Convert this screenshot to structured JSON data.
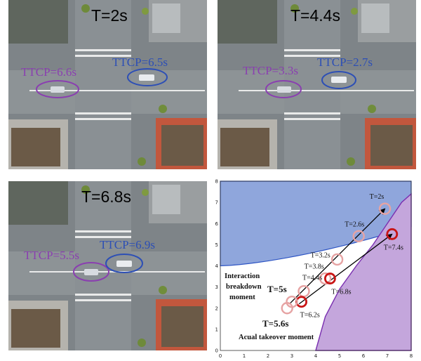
{
  "panels": [
    {
      "time": "T=2s",
      "ttcp_purple": "TTCP=6.6s",
      "ttcp_blue": "TTCP=6.5s"
    },
    {
      "time": "T=4.4s",
      "ttcp_purple": "TTCP=3.3s",
      "ttcp_blue": "TTCP=2.7s"
    },
    {
      "time": "T=6.8s",
      "ttcp_purple": "TTCP=5.5s",
      "ttcp_blue": "TTCP=6.9s"
    }
  ],
  "colors": {
    "purple": "#8a3fb0",
    "blue": "#2d4fb5",
    "region_blue": "#8fa6dc",
    "region_purple": "#c4a6dc",
    "marker_light": "#e6a3a3",
    "marker_dark": "#c81414"
  },
  "chart_data": {
    "type": "scatter",
    "xlim": [
      0,
      8
    ],
    "ylim": [
      0,
      8
    ],
    "x_ticks": [
      "0",
      "1",
      "2",
      "3",
      "4",
      "5",
      "6",
      "7",
      "8"
    ],
    "y_ticks": [
      "0",
      "1",
      "2",
      "3",
      "4",
      "5",
      "6",
      "7",
      "8"
    ],
    "grid": false,
    "points": [
      {
        "label": "T=2s",
        "x": 6.9,
        "y": 6.7,
        "style": "light"
      },
      {
        "label": "T=2.6s",
        "x": 5.8,
        "y": 5.4,
        "style": "light"
      },
      {
        "label": "T=3.2s",
        "x": 4.9,
        "y": 4.3,
        "style": "light"
      },
      {
        "label": "T=3.8s",
        "x": 4.4,
        "y": 3.4,
        "style": "light"
      },
      {
        "label": "T=4.4s",
        "x": 3.5,
        "y": 2.8,
        "style": "light"
      },
      {
        "label": "T=7.4s",
        "x": 7.2,
        "y": 5.5,
        "style": "dark"
      },
      {
        "label": "T=6.8s",
        "x": 4.6,
        "y": 3.4,
        "style": "dark"
      },
      {
        "label": "T=6.2s",
        "x": 3.4,
        "y": 2.3,
        "style": "dark"
      },
      {
        "label": "",
        "x": 2.8,
        "y": 2.0,
        "style": "light"
      },
      {
        "label": "",
        "x": 3.0,
        "y": 2.3,
        "style": "light"
      }
    ],
    "arrows": [
      {
        "from": [
          2.9,
          2.2
        ],
        "to": [
          6.9,
          6.7
        ]
      },
      {
        "from": [
          3.3,
          2.2
        ],
        "to": [
          7.2,
          5.5
        ]
      }
    ],
    "annotations": {
      "breakdown": [
        "Interaction",
        "breakdown",
        "moment"
      ],
      "t5": "T=5s",
      "t56": "T=5.6s",
      "takeover": "Acual takeover moment"
    }
  }
}
